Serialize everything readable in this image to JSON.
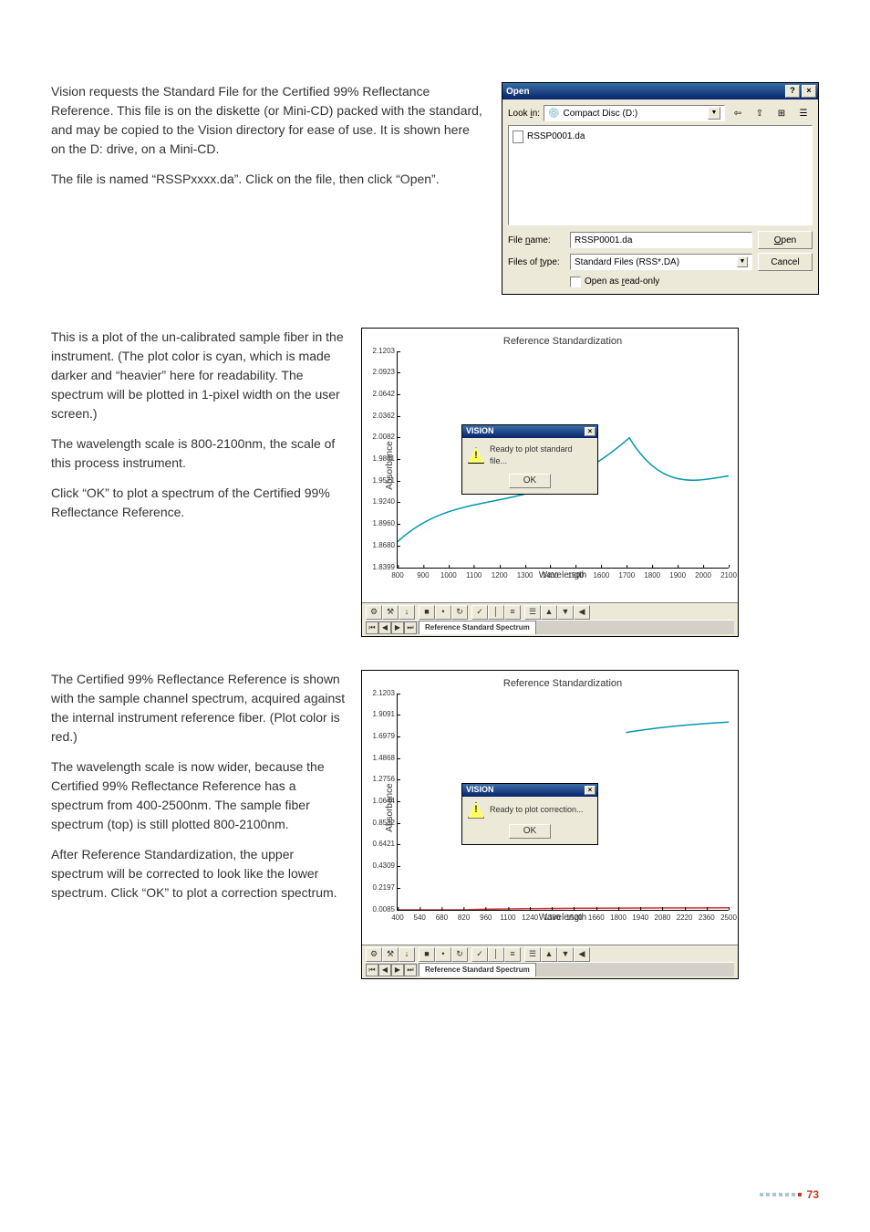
{
  "page": {
    "number": "73"
  },
  "section1": {
    "p1": "Vision requests the Standard File for the Certified 99% Reflectance Reference. This file is on the diskette (or Mini-CD) packed with the standard, and may be copied to the Vision directory for ease of use. It is shown here on the D: drive, on a Mini-CD.",
    "p2": "The file is named “RSSPxxxx.da”. Click on the file, then click “Open”."
  },
  "section2": {
    "p1": "This is a plot of the un-calibrated sample fiber in the instrument. (The plot color is cyan, which is made darker and “heavier” here for readability. The spectrum will be plotted in 1-pixel width on the user screen.)",
    "p2": "The wavelength scale is 800-2100nm, the scale of this process instrument.",
    "p3": "Click “OK” to plot a spectrum of the Certified 99% Reflectance Reference."
  },
  "section3": {
    "p1": "The Certified 99% Reflectance Reference is shown with the sample channel spectrum, acquired against the internal instrument reference fiber. (Plot color is red.)",
    "p2": "The wavelength scale is now wider, because the Certified 99% Reflectance Reference has a spectrum from 400-2500nm. The sample fiber spectrum (top) is still plotted 800-2100nm.",
    "p3": "After Reference Standardization, the upper spectrum will be corrected to look like the lower spectrum. Click “OK” to plot a correction spectrum."
  },
  "open_dialog": {
    "title": "Open",
    "look_in_label": "Look in:",
    "look_in_value": "Compact Disc (D:)",
    "file_item": "RSSP0001.da",
    "file_name_label": "File name:",
    "file_name_value": "RSSP0001.da",
    "file_type_label": "Files of type:",
    "file_type_value": "Standard Files (RSS*.DA)",
    "open_btn": "Open",
    "cancel_btn": "Cancel",
    "readonly_label": "Open as read-only",
    "toolbar_icons": [
      "⇦",
      "⇧",
      "⌂",
      "⊞",
      "☰"
    ]
  },
  "chart1": {
    "title": "Reference Standardization",
    "xlabel": "Wavelength",
    "ylabel": "Absorbance",
    "yticks_labels": [
      "1.8399",
      "1.8680",
      "1.8960",
      "1.9240",
      "1.9521",
      "1.9801",
      "2.0082",
      "2.0362",
      "2.0642",
      "2.0923",
      "2.1203"
    ],
    "yticks_pos": [
      100,
      90,
      80,
      70,
      60,
      50,
      40,
      30,
      20,
      10,
      0
    ],
    "xticks_labels": [
      "800",
      "900",
      "1000",
      "1100",
      "1200",
      "1300",
      "1400",
      "1500",
      "1600",
      "1700",
      "1800",
      "1900",
      "2000",
      "2100"
    ],
    "xticks_pos": [
      0,
      7.69,
      15.38,
      23.08,
      30.77,
      38.46,
      46.15,
      53.85,
      61.54,
      69.23,
      76.92,
      84.62,
      92.31,
      100
    ],
    "line_color": "#0099aa",
    "line_path": "M0,88 C20,60 40,80 70,40 C90,90 110,20 140,88 C170,55 190,95 220,35 C240,90 270,45 300,60 C330,85 350,10 362,0",
    "msg_title": "VISION",
    "msg_text": "Ready to plot standard file...",
    "msg_ok": "OK",
    "tab_label": "Reference Standard Spectrum",
    "footer_icons": [
      "⚙",
      "⚒",
      "↓",
      "■",
      "•",
      "↻",
      "✓",
      "│",
      "≡",
      "☰",
      "▲",
      "▼",
      "◀"
    ]
  },
  "chart2": {
    "title": "Reference Standardization",
    "xlabel": "Wavelength",
    "ylabel": "Absorbance",
    "yticks_labels": [
      "0.0085",
      "0.2197",
      "0.4309",
      "0.6421",
      "0.8532",
      "1.0644",
      "1.2756",
      "1.4868",
      "1.6979",
      "1.9091",
      "2.1203"
    ],
    "yticks_pos": [
      100,
      90,
      80,
      70,
      60,
      50,
      40,
      30,
      20,
      10,
      0
    ],
    "xticks_labels": [
      "400",
      "540",
      "680",
      "820",
      "960",
      "1100",
      "1240",
      "1380",
      "1520",
      "1660",
      "1800",
      "1940",
      "2080",
      "2220",
      "2360",
      "2500"
    ],
    "xticks_pos": [
      0,
      6.67,
      13.33,
      20,
      26.67,
      33.33,
      40,
      46.67,
      53.33,
      60,
      66.67,
      73.33,
      80,
      86.67,
      93.33,
      100
    ],
    "top_line_color": "#0099aa",
    "top_line_path": "M69,18 C110,8 150,15 200,10 C240,14 290,7 320,12 L320,3",
    "bottom_line_color": "#cc3333",
    "bottom_line_path": "M0,100 L20,100 C40,99 100,99 200,99 C300,99 340,98 362,94",
    "msg_title": "VISION",
    "msg_text": "Ready to plot correction...",
    "msg_ok": "OK",
    "tab_label": "Reference Standard Spectrum",
    "footer_icons": [
      "⚙",
      "⚒",
      "↓",
      "■",
      "•",
      "↻",
      "✓",
      "│",
      "≡",
      "☰",
      "▲",
      "▼",
      "◀"
    ]
  }
}
